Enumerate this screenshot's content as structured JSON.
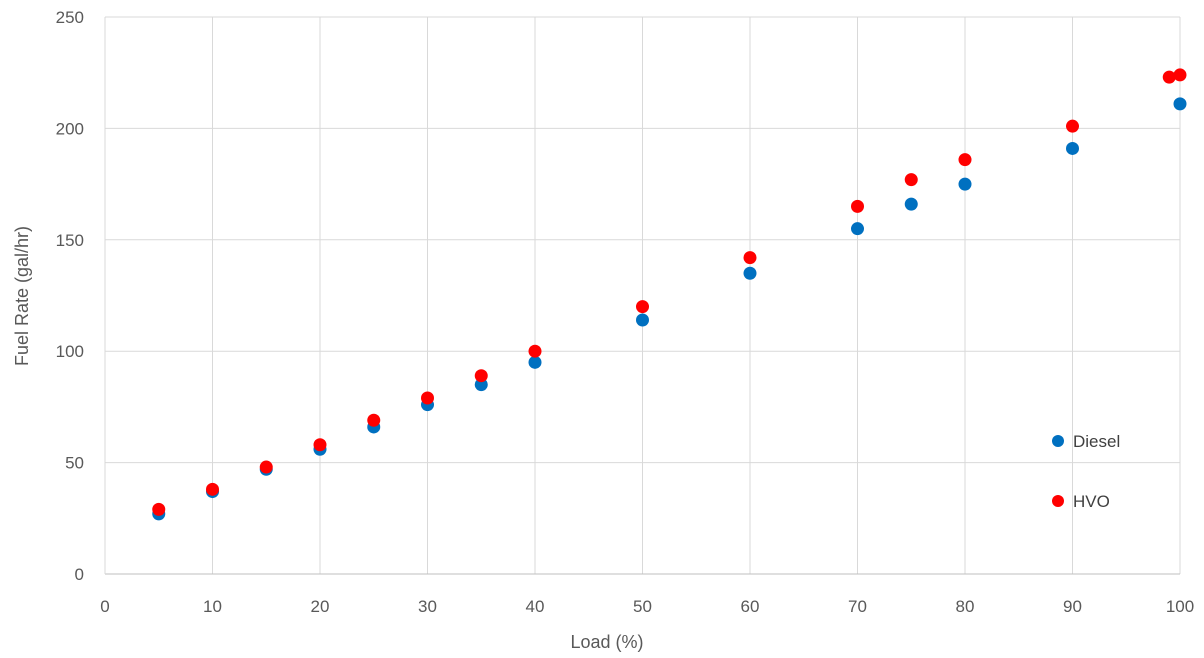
{
  "chart_data": {
    "type": "scatter",
    "title": "",
    "xlabel": "Load (%)",
    "ylabel": "Fuel Rate (gal/hr)",
    "xlim": [
      0,
      100
    ],
    "ylim": [
      0,
      250
    ],
    "xticks": [
      "0",
      "10",
      "20",
      "30",
      "40",
      "50",
      "60",
      "70",
      "80",
      "90",
      "100"
    ],
    "yticks": [
      "0",
      "50",
      "100",
      "150",
      "200",
      "250"
    ],
    "grid": true,
    "legend_position": "right",
    "series": [
      {
        "name": "Diesel",
        "color": "#0070C0",
        "x": [
          5,
          10,
          15,
          20,
          25,
          30,
          35,
          40,
          50,
          60,
          70,
          75,
          80,
          90,
          100
        ],
        "y": [
          27,
          37,
          47,
          56,
          66,
          76,
          85,
          95,
          114,
          135,
          155,
          166,
          175,
          191,
          211
        ]
      },
      {
        "name": "HVO",
        "color": "#FF0000",
        "x": [
          5,
          10,
          15,
          20,
          25,
          30,
          35,
          40,
          50,
          60,
          70,
          75,
          80,
          90,
          99,
          100
        ],
        "y": [
          29,
          38,
          48,
          58,
          69,
          79,
          89,
          100,
          120,
          142,
          165,
          177,
          186,
          201,
          223,
          224
        ]
      }
    ]
  }
}
